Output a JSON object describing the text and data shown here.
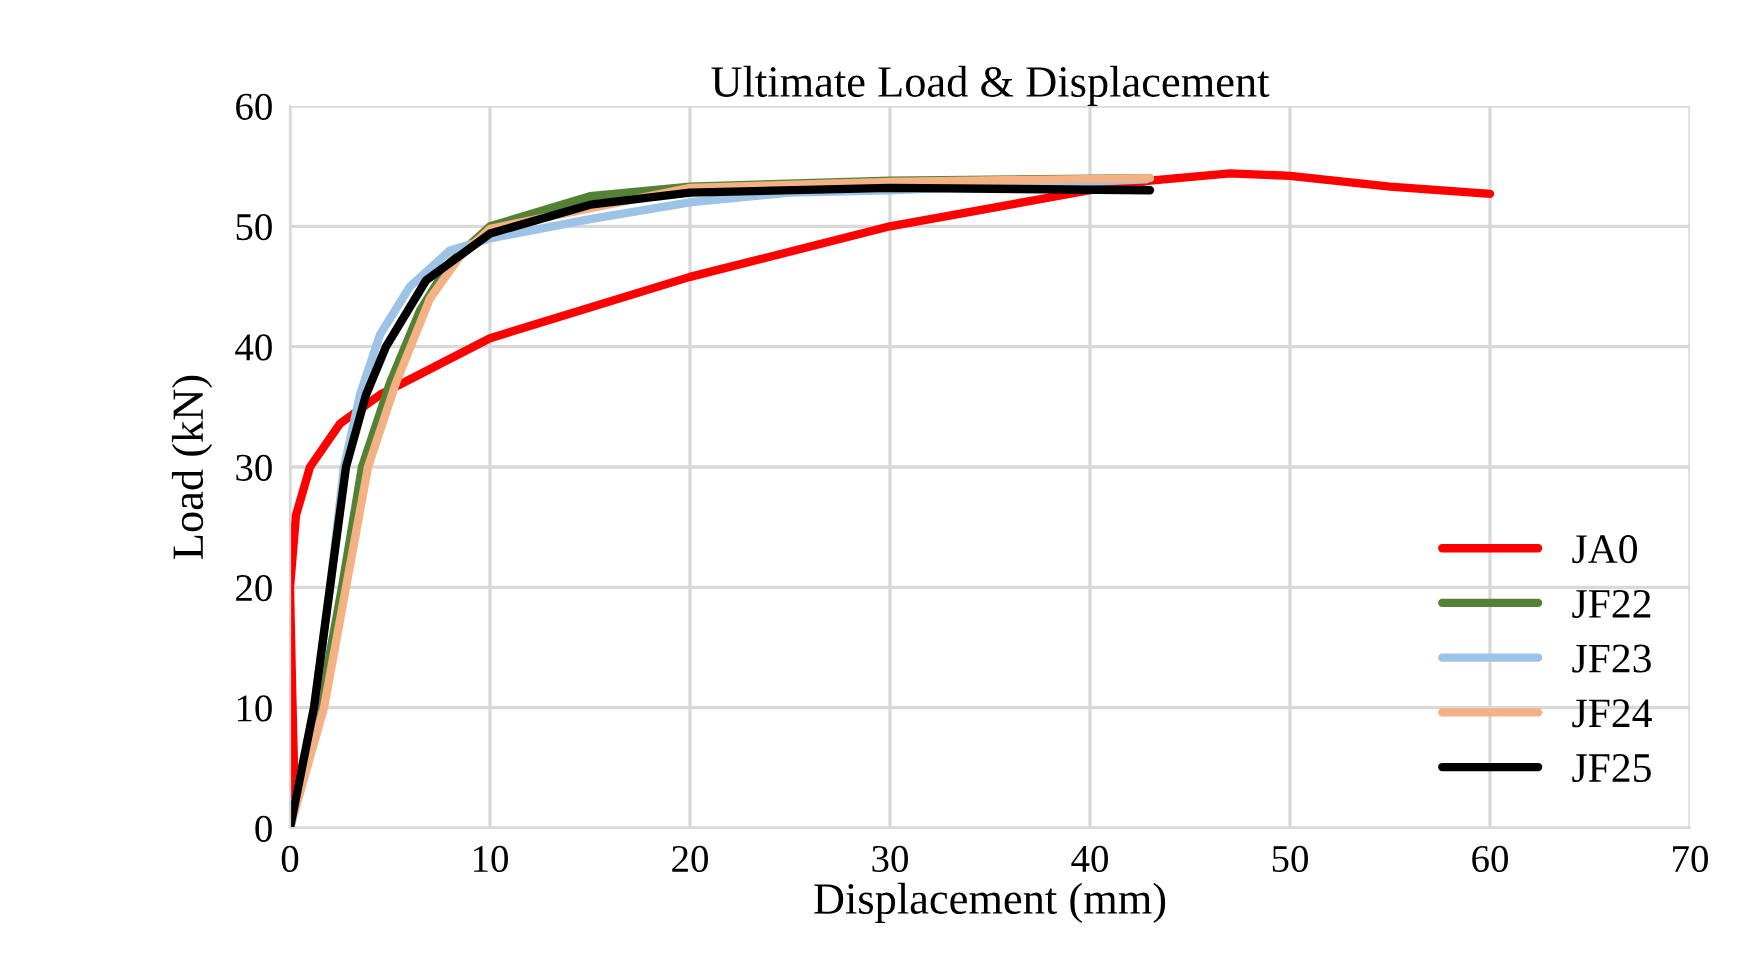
{
  "chart_data": {
    "type": "line",
    "title": "Ultimate Load & Displacement",
    "xlabel": "Displacement (mm)",
    "ylabel": "Load (kN)",
    "xlim": [
      0,
      70
    ],
    "ylim": [
      0,
      60
    ],
    "xticks": [
      0,
      10,
      20,
      30,
      40,
      50,
      60,
      70
    ],
    "yticks": [
      0,
      10,
      20,
      30,
      40,
      50,
      60
    ],
    "grid": true,
    "legend": "bottom right",
    "marker": "none",
    "line_style": "solid",
    "series": [
      {
        "name": "JA0",
        "color": "#ff0000",
        "x": [
          0,
          0.2,
          0.1,
          0,
          0.3,
          1,
          2.5,
          4.5,
          10,
          20,
          30,
          40,
          43,
          47,
          50,
          55,
          60
        ],
        "values": [
          0,
          5,
          12,
          20,
          26,
          30,
          33.6,
          36,
          40.7,
          45.8,
          50,
          53,
          53.8,
          54.4,
          54.2,
          53.3,
          52.7
        ]
      },
      {
        "name": "JF22",
        "color": "#548235",
        "x": [
          0,
          1.5,
          2.6,
          3.6,
          5,
          6.5,
          8,
          10,
          15,
          20,
          30,
          43
        ],
        "values": [
          0,
          10,
          20,
          30,
          37,
          43,
          47,
          50,
          52.5,
          53.3,
          53.8,
          54
        ]
      },
      {
        "name": "JF23",
        "color": "#9dc3e6",
        "x": [
          0,
          1.2,
          2,
          2.7,
          3.5,
          4.5,
          6,
          8,
          10,
          15,
          20,
          25,
          30,
          42.8
        ],
        "values": [
          0,
          10,
          20,
          30,
          36,
          41,
          45,
          48,
          49,
          50.6,
          52,
          52.8,
          53,
          53.9
        ]
      },
      {
        "name": "JF24",
        "color": "#f4b183",
        "x": [
          0,
          1.7,
          2.8,
          3.9,
          5.3,
          7,
          8.5,
          10,
          20,
          30,
          43
        ],
        "values": [
          0,
          10,
          20,
          30,
          37,
          44,
          47.5,
          49.8,
          53.2,
          53.7,
          54
        ]
      },
      {
        "name": "JF25",
        "color": "#000000",
        "x": [
          0,
          1.2,
          2,
          2.8,
          3.8,
          4.8,
          6.8,
          10,
          15,
          20,
          30,
          43
        ],
        "values": [
          0,
          10,
          20,
          30,
          36,
          40,
          45.5,
          49.4,
          51.8,
          52.8,
          53.2,
          53
        ]
      }
    ]
  }
}
